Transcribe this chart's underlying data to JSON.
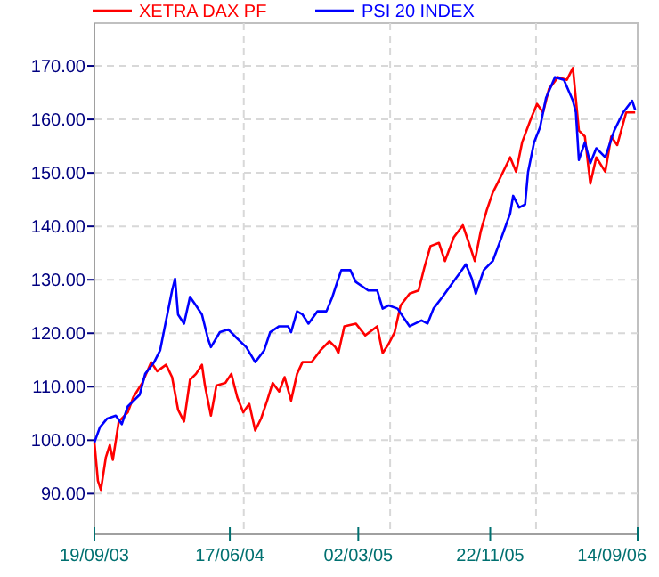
{
  "chart_data": {
    "type": "line",
    "legend": "top left",
    "grid": true,
    "line_style": "solid",
    "marker": "none",
    "xlim": [
      "2003-09-19",
      "2006-09-14"
    ],
    "xticks": [
      {
        "value": "2003-09-19",
        "label": "19/09/03"
      },
      {
        "value": "2004-06-17",
        "label": "17/06/04"
      },
      {
        "value": "2005-03-02",
        "label": "02/03/05"
      },
      {
        "value": "2005-11-22",
        "label": "22/11/05"
      },
      {
        "value": "2006-09-14",
        "label": "14/09/06"
      },
      {
        "value": "2004-07-15",
        "label": null
      },
      {
        "value": "2005-05-05",
        "label": null
      },
      {
        "value": "2006-02-22",
        "label": null
      }
    ],
    "ylim": [
      82.4,
      178
    ],
    "yticks": [
      {
        "value": 90,
        "label": "90.00"
      },
      {
        "value": 100,
        "label": "100.00"
      },
      {
        "value": 110,
        "label": "110.00"
      },
      {
        "value": 120,
        "label": "120.00"
      },
      {
        "value": 130,
        "label": "130.00"
      },
      {
        "value": 140,
        "label": "140.00"
      },
      {
        "value": 150,
        "label": "150.00"
      },
      {
        "value": 160,
        "label": "160.00"
      },
      {
        "value": 170,
        "label": "170.00"
      }
    ],
    "series": [
      {
        "name": "XETRA DAX PF",
        "color": "#ff0000",
        "x": [
          "2003-09-19",
          "2003-09-26",
          "2003-10-02",
          "2003-10-12",
          "2003-10-20",
          "2003-10-26",
          "2003-11-07",
          "2003-11-25",
          "2003-12-06",
          "2003-12-24",
          "2004-01-11",
          "2004-01-23",
          "2004-02-10",
          "2004-02-22",
          "2004-03-05",
          "2004-03-17",
          "2004-03-29",
          "2004-04-10",
          "2004-04-22",
          "2004-04-28",
          "2004-05-10",
          "2004-05-21",
          "2004-06-08",
          "2004-06-20",
          "2004-07-02",
          "2004-07-14",
          "2004-07-26",
          "2004-08-07",
          "2004-08-19",
          "2004-08-31",
          "2004-09-11",
          "2004-09-24",
          "2004-10-05",
          "2004-10-18",
          "2004-10-30",
          "2004-11-10",
          "2004-11-28",
          "2004-12-16",
          "2005-01-03",
          "2005-01-15",
          "2005-01-21",
          "2005-02-02",
          "2005-02-25",
          "2005-03-16",
          "2005-04-09",
          "2005-04-20",
          "2005-05-02",
          "2005-05-14",
          "2005-05-26",
          "2005-06-13",
          "2005-07-01",
          "2005-07-13",
          "2005-07-25",
          "2005-08-11",
          "2005-08-23",
          "2005-09-10",
          "2005-09-28",
          "2005-10-10",
          "2005-10-22",
          "2005-11-03",
          "2005-11-15",
          "2005-11-27",
          "2005-12-09",
          "2006-01-01",
          "2006-01-13",
          "2006-01-25",
          "2006-02-12",
          "2006-02-24",
          "2006-03-08",
          "2006-03-20",
          "2006-04-07",
          "2006-04-25",
          "2006-05-07",
          "2006-05-19",
          "2006-05-31",
          "2006-06-11",
          "2006-06-23",
          "2006-07-11",
          "2006-07-23",
          "2006-08-04",
          "2006-08-22",
          "2006-09-09"
        ],
        "values": [
          99.6,
          92.4,
          90.7,
          96.8,
          99.1,
          96.3,
          103.5,
          105.2,
          108,
          110.7,
          114.6,
          112.9,
          114.1,
          111.8,
          105.7,
          103.5,
          111.3,
          112.4,
          114.1,
          110.2,
          104.6,
          110.2,
          110.7,
          112.4,
          108,
          105.2,
          106.8,
          101.8,
          104.1,
          107.4,
          110.7,
          109.1,
          111.8,
          107.4,
          112.4,
          114.6,
          114.6,
          116.8,
          118.5,
          117.4,
          116.3,
          121.3,
          121.8,
          119.6,
          121.3,
          116.3,
          118,
          120.2,
          125.2,
          127.4,
          128,
          132.4,
          136.3,
          136.9,
          133.5,
          138,
          140.2,
          136.9,
          133.5,
          139.1,
          143,
          146.3,
          148.5,
          152.9,
          150.2,
          155.7,
          160.2,
          162.9,
          161.3,
          165.7,
          167.9,
          167.4,
          169.6,
          157.9,
          156.8,
          148,
          152.9,
          150.2,
          156.8,
          155.2,
          161.3,
          161.3
        ]
      },
      {
        "name": "PSI 20 INDEX",
        "color": "#0000ff",
        "x": [
          "2003-09-19",
          "2003-09-30",
          "2003-10-14",
          "2003-11-01",
          "2003-11-13",
          "2003-11-25",
          "2003-12-19",
          "2003-12-30",
          "2004-01-17",
          "2004-01-29",
          "2004-02-10",
          "2004-02-22",
          "2004-02-28",
          "2004-03-05",
          "2004-03-17",
          "2004-03-29",
          "2004-04-10",
          "2004-04-22",
          "2004-05-04",
          "2004-05-10",
          "2004-05-28",
          "2004-06-14",
          "2004-07-02",
          "2004-07-20",
          "2004-08-07",
          "2004-08-25",
          "2004-09-06",
          "2004-09-24",
          "2004-10-12",
          "2004-10-18",
          "2004-10-30",
          "2004-11-10",
          "2004-11-22",
          "2004-12-10",
          "2004-12-28",
          "2005-01-09",
          "2005-01-21",
          "2005-01-27",
          "2005-02-14",
          "2005-02-25",
          "2005-03-22",
          "2005-04-09",
          "2005-04-20",
          "2005-05-02",
          "2005-05-20",
          "2005-06-01",
          "2005-06-13",
          "2005-07-07",
          "2005-07-19",
          "2005-07-31",
          "2005-08-18",
          "2005-09-04",
          "2005-09-22",
          "2005-10-04",
          "2005-10-16",
          "2005-10-24",
          "2005-11-09",
          "2005-11-27",
          "2005-12-15",
          "2006-01-01",
          "2006-01-07",
          "2006-01-19",
          "2006-01-31",
          "2006-02-06",
          "2006-02-18",
          "2006-03-02",
          "2006-03-14",
          "2006-04-01",
          "2006-04-19",
          "2006-05-07",
          "2006-05-13",
          "2006-05-19",
          "2006-05-31",
          "2006-06-11",
          "2006-06-23",
          "2006-07-11",
          "2006-07-29",
          "2006-08-16",
          "2006-09-03",
          "2006-09-09"
        ],
        "values": [
          99.6,
          102.4,
          104,
          104.6,
          103,
          106.3,
          108.5,
          112.4,
          114.6,
          116.8,
          122.4,
          128,
          130.2,
          123.5,
          121.8,
          126.8,
          125.2,
          123.5,
          119,
          117.4,
          120.2,
          120.7,
          119,
          117.4,
          114.6,
          116.8,
          120.2,
          121.3,
          121.3,
          120.2,
          124.1,
          123.5,
          121.8,
          124.1,
          124.1,
          126.8,
          130.2,
          131.8,
          131.8,
          129.6,
          128,
          128,
          124.6,
          125.2,
          124.6,
          122.9,
          121.3,
          122.4,
          121.8,
          124.6,
          126.8,
          129,
          131.3,
          132.9,
          130.2,
          127.4,
          131.8,
          133.5,
          138,
          142.4,
          145.7,
          143.5,
          144.1,
          150.2,
          155.7,
          158.5,
          164,
          167.9,
          167.4,
          163.5,
          161.3,
          152.4,
          155.7,
          151.8,
          154.6,
          152.9,
          157.9,
          161.3,
          163.5,
          161.8
        ]
      }
    ]
  }
}
